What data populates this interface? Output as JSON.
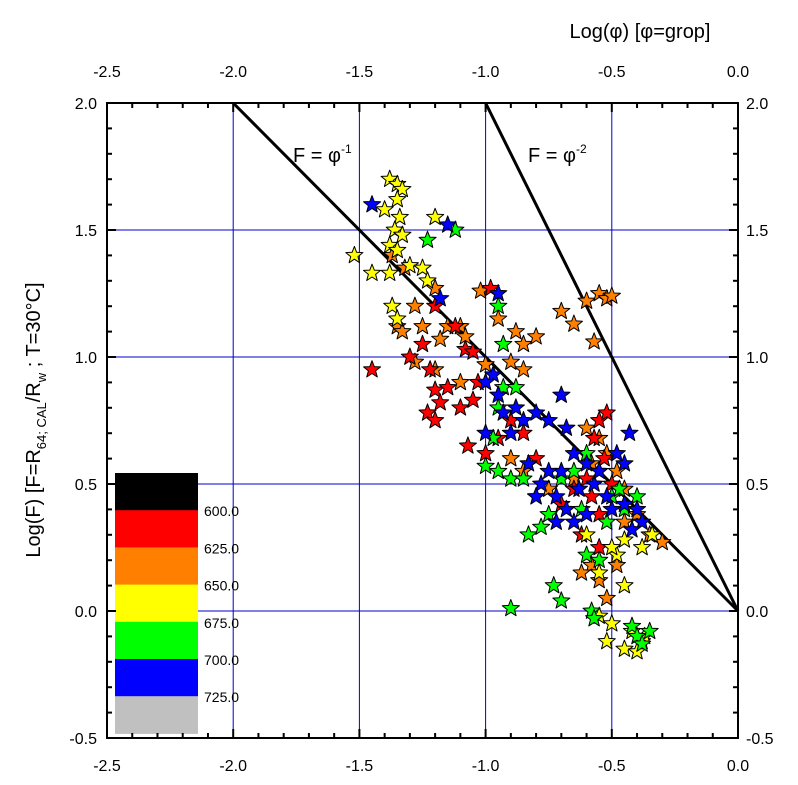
{
  "chart_data": {
    "type": "scatter",
    "x2label": "Log(φ) [φ=grop]",
    "ylabel_parts": [
      {
        "text": "Log(F) [F=R"
      },
      {
        "text": "64; CAL",
        "sub": true
      },
      {
        "text": "/R"
      },
      {
        "text": "w",
        "sub": true
      },
      {
        "text": " ; T=30°C]"
      }
    ],
    "xlim": [
      -2.5,
      0.0
    ],
    "ylim": [
      -0.5,
      2.0
    ],
    "xticks": [
      {
        "value": -2.5,
        "label": "-2.5"
      },
      {
        "value": -2.0,
        "label": "-2.0"
      },
      {
        "value": -1.5,
        "label": "-1.5"
      },
      {
        "value": -1.0,
        "label": "-1.0"
      },
      {
        "value": -0.5,
        "label": "-0.5"
      },
      {
        "value": 0.0,
        "label": "0.0"
      }
    ],
    "yticks": [
      {
        "value": -0.5,
        "label": "-0.5"
      },
      {
        "value": 0.0,
        "label": "0.0"
      },
      {
        "value": 0.5,
        "label": "0.5"
      },
      {
        "value": 1.0,
        "label": "1.0"
      },
      {
        "value": 1.5,
        "label": "1.5"
      },
      {
        "value": 2.0,
        "label": "2.0"
      }
    ],
    "xminorticks": [
      -2.4,
      -2.3,
      -2.2,
      -2.1,
      -1.9,
      -1.8,
      -1.7,
      -1.6,
      -1.4,
      -1.3,
      -1.2,
      -1.1,
      -0.9,
      -0.8,
      -0.7,
      -0.6,
      -0.4,
      -0.3,
      -0.2,
      -0.1
    ],
    "yminorticks": [
      -0.4,
      -0.3,
      -0.2,
      -0.1,
      0.1,
      0.2,
      0.3,
      0.4,
      0.6,
      0.7,
      0.8,
      0.9,
      1.1,
      1.2,
      1.3,
      1.4,
      1.6,
      1.7,
      1.8,
      1.9
    ],
    "grid": true,
    "grid_color": "#0000cc",
    "lines": [
      {
        "x": [
          -2.0,
          0.0
        ],
        "y": [
          2.0,
          0.0
        ]
      },
      {
        "x": [
          -1.0,
          0.0
        ],
        "y": [
          2.0,
          0.0
        ]
      }
    ],
    "annotations": [
      {
        "text": "F = φ",
        "sup": "-1"
      },
      {
        "text": "F = φ",
        "sup": "-2"
      }
    ],
    "colorbar": {
      "colors": [
        "#000000",
        "#ff0000",
        "#ff8000",
        "#ffff00",
        "#00ff00",
        "#0000ff",
        "#c0c0c0"
      ],
      "labels": [
        {
          "value": 600,
          "label": "600.0"
        },
        {
          "value": 625,
          "label": "625.0"
        },
        {
          "value": 650,
          "label": "650.0"
        },
        {
          "value": 675,
          "label": "675.0"
        },
        {
          "value": 700,
          "label": "700.0"
        },
        {
          "value": 725,
          "label": "725.0"
        }
      ]
    },
    "series": [
      {
        "color": "#ff8000",
        "x": [
          -1.37,
          -1.32,
          -1.28,
          -1.35,
          -1.33,
          -1.25,
          -1.18,
          -1.15,
          -1.1,
          -1.08,
          -1.02,
          -0.95,
          -0.88,
          -0.85,
          -0.8,
          -0.65,
          -0.7,
          -0.6,
          -0.55,
          -0.52,
          -0.5,
          -0.57,
          -1.28,
          -1.2,
          -1.1,
          -1.0,
          -0.9,
          -0.85,
          -0.9,
          -0.85,
          -0.75,
          -0.65,
          -0.6,
          -0.58,
          -0.55,
          -0.52,
          -0.48,
          -0.45,
          -0.4,
          -0.35,
          -0.3,
          -0.58,
          -0.55,
          -0.52,
          -0.62,
          -0.48,
          -0.45,
          -1.2
        ],
        "y": [
          1.4,
          1.35,
          1.2,
          1.12,
          1.1,
          1.12,
          1.07,
          1.12,
          1.12,
          1.08,
          1.26,
          1.15,
          1.1,
          1.05,
          1.08,
          1.13,
          1.18,
          1.22,
          1.25,
          1.23,
          1.24,
          1.06,
          0.98,
          0.95,
          0.9,
          0.97,
          0.98,
          0.95,
          0.6,
          0.55,
          0.48,
          0.52,
          0.72,
          0.58,
          0.68,
          0.62,
          0.55,
          0.48,
          0.38,
          0.3,
          0.27,
          0.18,
          0.12,
          0.05,
          0.15,
          0.18,
          0.35,
          1.27
        ]
      },
      {
        "color": "#ff0000",
        "x": [
          -1.45,
          -1.3,
          -1.25,
          -1.22,
          -1.2,
          -1.15,
          -1.23,
          -1.2,
          -1.18,
          -1.12,
          -1.08,
          -1.05,
          -1.03,
          -1.05,
          -1.1,
          -0.95,
          -1.0,
          -1.07,
          -0.98,
          -1.2,
          -0.9,
          -0.85,
          -0.8,
          -0.55,
          -0.52,
          -0.57,
          -0.53,
          -0.5,
          -0.58,
          -0.55,
          -0.6,
          -0.65,
          -0.7,
          -0.62,
          -0.55
        ],
        "y": [
          0.95,
          1.0,
          1.05,
          0.95,
          0.87,
          0.88,
          0.78,
          0.75,
          0.82,
          1.12,
          1.03,
          1.02,
          0.9,
          0.83,
          0.8,
          0.68,
          0.62,
          0.65,
          1.27,
          1.2,
          0.75,
          0.7,
          0.6,
          0.75,
          0.78,
          0.68,
          0.6,
          0.5,
          0.45,
          0.38,
          0.52,
          0.48,
          0.42,
          0.3,
          0.25
        ]
      },
      {
        "color": "#ffff00",
        "x": [
          -1.38,
          -1.35,
          -1.33,
          -1.4,
          -1.35,
          -1.34,
          -1.36,
          -1.33,
          -1.38,
          -1.35,
          -1.52,
          -1.45,
          -1.38,
          -1.3,
          -1.25,
          -1.23,
          -1.2,
          -1.37,
          -1.35,
          -0.55,
          -0.5,
          -0.48,
          -0.45,
          -0.42,
          -0.38,
          -0.52,
          -0.45,
          -0.4,
          -0.37,
          -0.45,
          -0.5,
          -0.55,
          -0.6,
          -0.34,
          -0.38
        ],
        "y": [
          1.7,
          1.68,
          1.66,
          1.58,
          1.62,
          1.55,
          1.5,
          1.48,
          1.44,
          1.42,
          1.4,
          1.33,
          1.33,
          1.36,
          1.35,
          1.3,
          1.55,
          1.2,
          1.15,
          -0.02,
          -0.05,
          0.22,
          0.28,
          -0.08,
          -0.12,
          -0.12,
          -0.15,
          -0.16,
          -0.1,
          0.1,
          0.25,
          0.15,
          0.3,
          0.3,
          0.25
        ]
      },
      {
        "color": "#00ff00",
        "x": [
          -1.23,
          -1.12,
          -0.95,
          -0.93,
          -0.93,
          -0.88,
          -0.95,
          -0.97,
          -1.0,
          -0.95,
          -0.9,
          -0.85,
          -0.8,
          -0.83,
          -0.75,
          -0.7,
          -0.65,
          -0.6,
          -0.55,
          -0.5,
          -0.45,
          -0.4,
          -0.73,
          -0.7,
          -0.9,
          -0.58,
          -0.57,
          -0.42,
          -0.4,
          -0.35,
          -0.38,
          -0.6,
          -0.55,
          -0.52,
          -0.47,
          -0.62,
          -0.78
        ],
        "y": [
          1.46,
          1.5,
          1.2,
          1.05,
          0.88,
          0.88,
          0.8,
          0.68,
          0.57,
          0.55,
          0.52,
          0.52,
          0.45,
          0.3,
          0.38,
          0.52,
          0.55,
          0.62,
          0.55,
          0.45,
          0.4,
          0.45,
          0.1,
          0.04,
          0.01,
          0.0,
          -0.03,
          -0.06,
          -0.1,
          -0.08,
          -0.13,
          0.22,
          0.2,
          0.35,
          0.48,
          0.4,
          0.33
        ]
      },
      {
        "color": "#0000ff",
        "x": [
          -1.45,
          -1.15,
          -1.18,
          -0.95,
          -0.97,
          -1.0,
          -0.95,
          -1.0,
          -0.93,
          -0.88,
          -0.9,
          -0.85,
          -0.8,
          -0.75,
          -0.7,
          -0.68,
          -0.65,
          -0.7,
          -0.75,
          -0.78,
          -0.8,
          -0.72,
          -0.68,
          -0.72,
          -0.65,
          -0.6,
          -0.57,
          -0.52,
          -0.48,
          -0.45,
          -0.43,
          -0.5,
          -0.45,
          -0.4,
          -0.38,
          -0.42,
          -0.55,
          -0.6,
          -0.83,
          -0.63
        ],
        "y": [
          1.6,
          1.52,
          1.23,
          1.25,
          0.93,
          0.9,
          0.85,
          0.7,
          0.78,
          0.8,
          0.7,
          0.75,
          0.78,
          0.75,
          0.85,
          0.72,
          0.62,
          0.55,
          0.55,
          0.5,
          0.45,
          0.45,
          0.4,
          0.35,
          0.35,
          0.58,
          0.5,
          0.45,
          0.62,
          0.58,
          0.7,
          0.4,
          0.42,
          0.4,
          0.35,
          0.32,
          0.55,
          0.38,
          0.58,
          0.48
        ]
      }
    ]
  }
}
